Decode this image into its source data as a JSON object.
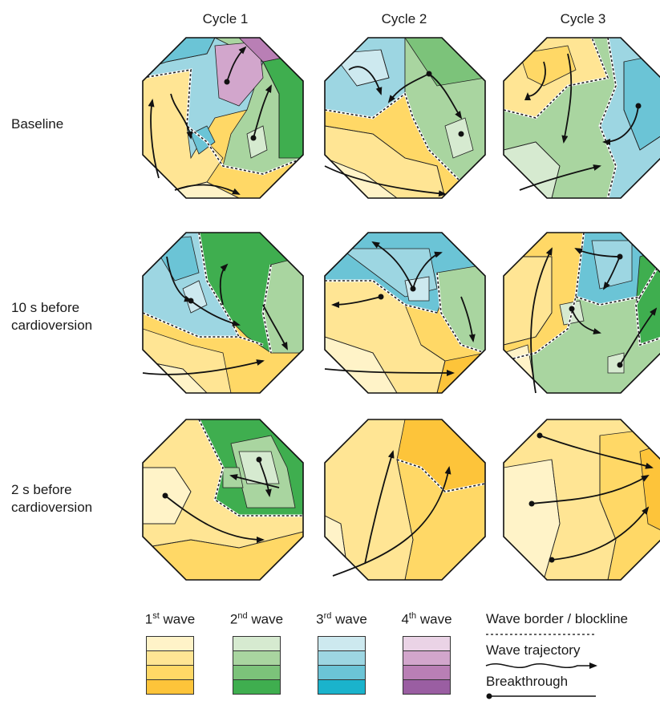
{
  "columns": [
    "Cycle 1",
    "Cycle 2",
    "Cycle 3"
  ],
  "rows": [
    "Baseline",
    "10 s before\ncardioversion",
    "2 s before\ncardioversion"
  ],
  "legend": {
    "waves": [
      {
        "num": "1",
        "sup": "st",
        "label": "wave",
        "colors": [
          "#fff3c8",
          "#ffe594",
          "#ffd866",
          "#fdc43a"
        ]
      },
      {
        "num": "2",
        "sup": "nd",
        "label": "wave",
        "colors": [
          "#d6ead0",
          "#a9d5a0",
          "#7cc37a",
          "#3fae4f"
        ]
      },
      {
        "num": "3",
        "sup": "rd",
        "label": "wave",
        "colors": [
          "#cde9ef",
          "#9dd6e2",
          "#6bc4d6",
          "#1ab3cc"
        ]
      },
      {
        "num": "4",
        "sup": "th",
        "label": "wave",
        "colors": [
          "#ead3e6",
          "#d2a6cc",
          "#b97fb5",
          "#9a5ea2"
        ]
      }
    ],
    "keys": {
      "border": "Wave border / blockline",
      "trajectory": "Wave trajectory",
      "breakthrough": "Breakthrough"
    }
  },
  "palette": {
    "y1": "#fff3c8",
    "y2": "#ffe594",
    "y3": "#ffd866",
    "y4": "#fdc43a",
    "g1": "#d6ead0",
    "g2": "#a9d5a0",
    "g3": "#7cc37a",
    "g4": "#3fae4f",
    "b1": "#cde9ef",
    "b2": "#9dd6e2",
    "b3": "#6bc4d6",
    "b4": "#1ab3cc",
    "p2": "#d2a6cc",
    "p3": "#b97fb5"
  }
}
